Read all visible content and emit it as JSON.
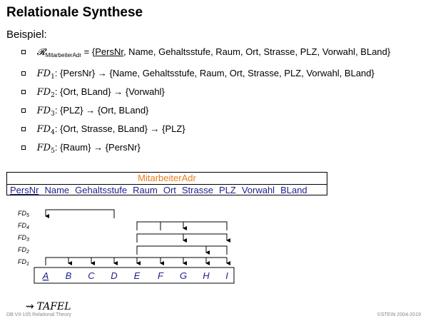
{
  "title": "Relationale Synthese",
  "subtitle": "Beispiel:",
  "relation": {
    "symbol": "𝓡",
    "subscript": "MitarbeiterAdr",
    "equals": "=",
    "open": "{",
    "key": "PersNr",
    "rest": ", Name, Gehaltsstufe, Raum, Ort, Strasse, PLZ, Vorwahl, BLand",
    "close": "}"
  },
  "fds": [
    {
      "label": "FD",
      "index": "1",
      "colon": ":",
      "lhs": "{PersNr}",
      "arrow": "→",
      "rhs": "{Name, Gehaltsstufe, Raum, Ort, Strasse, PLZ, Vorwahl, BLand}"
    },
    {
      "label": "FD",
      "index": "2",
      "colon": ":",
      "lhs": "{Ort, BLand}",
      "arrow": "→",
      "rhs": "{Vorwahl}"
    },
    {
      "label": "FD",
      "index": "3",
      "colon": ":",
      "lhs": "{PLZ}",
      "arrow": "→",
      "rhs": "{Ort, BLand}"
    },
    {
      "label": "FD",
      "index": "4",
      "colon": ":",
      "lhs": "{Ort, Strasse, BLand}",
      "arrow": "→",
      "rhs": "{PLZ}"
    },
    {
      "label": "FD",
      "index": "5",
      "colon": ":",
      "lhs": "{Raum}",
      "arrow": "→",
      "rhs": "{PersNr}"
    }
  ],
  "table": {
    "name": "MitarbeiterAdr",
    "columns": [
      "PersNr",
      "Name",
      "Gehaltsstufe",
      "Raum",
      "Ort",
      "Strasse",
      "PLZ",
      "Vorwahl",
      "BLand"
    ]
  },
  "diagram": {
    "fd_labels": [
      {
        "base": "FD",
        "idx": "5"
      },
      {
        "base": "FD",
        "idx": "4"
      },
      {
        "base": "FD",
        "idx": "3"
      },
      {
        "base": "FD",
        "idx": "2"
      },
      {
        "base": "FD",
        "idx": "1"
      }
    ],
    "attributes": [
      "A",
      "B",
      "C",
      "D",
      "E",
      "F",
      "G",
      "H",
      "I"
    ]
  },
  "tafel": {
    "arrow": "⇝",
    "text": "TAFEL"
  },
  "footer": {
    "left": "DB:VII-105   Relational Theory",
    "right": "©STEIN 2004-2019"
  }
}
